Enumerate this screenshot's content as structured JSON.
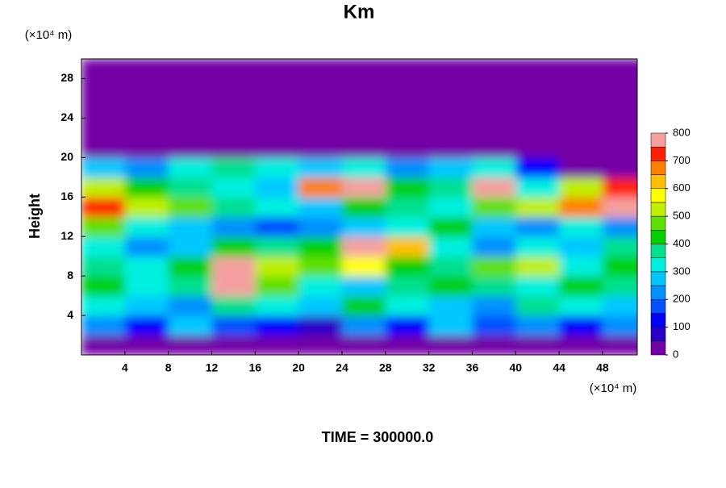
{
  "chart_data": {
    "type": "contour",
    "title": "Km",
    "y_label": "Height",
    "y_unit": "(×10⁴ m)",
    "x_unit": "(×10⁴ m)",
    "annotation": "TIME = 300000.0",
    "xlim": [
      0,
      51.2
    ],
    "ylim": [
      0,
      30
    ],
    "xticks": [
      4,
      8,
      12,
      16,
      20,
      24,
      28,
      32,
      36,
      40,
      44,
      48
    ],
    "yticks": [
      4,
      8,
      12,
      16,
      20,
      24,
      28
    ],
    "x": [
      2,
      6,
      10,
      14,
      18,
      22,
      26,
      30,
      34,
      38,
      42,
      46,
      50
    ],
    "y": [
      1,
      3,
      5,
      7,
      9,
      11,
      13,
      15,
      17,
      19,
      21,
      23,
      25,
      27,
      29
    ],
    "z": [
      [
        0,
        0,
        0,
        0,
        0,
        0,
        0,
        0,
        0,
        0,
        0,
        0,
        0
      ],
      [
        200,
        100,
        250,
        150,
        100,
        50,
        200,
        100,
        250,
        150,
        200,
        100,
        200
      ],
      [
        300,
        250,
        200,
        350,
        300,
        250,
        400,
        300,
        250,
        200,
        350,
        300,
        250
      ],
      [
        400,
        300,
        350,
        800,
        450,
        300,
        250,
        350,
        400,
        350,
        300,
        400,
        350
      ],
      [
        350,
        300,
        400,
        800,
        500,
        450,
        550,
        400,
        350,
        450,
        500,
        300,
        400
      ],
      [
        300,
        200,
        250,
        400,
        350,
        400,
        800,
        600,
        300,
        200,
        300,
        250,
        350
      ],
      [
        450,
        300,
        250,
        200,
        150,
        200,
        250,
        300,
        400,
        250,
        200,
        300,
        200
      ],
      [
        700,
        500,
        450,
        350,
        300,
        250,
        400,
        350,
        300,
        450,
        500,
        650,
        800
      ],
      [
        500,
        400,
        350,
        300,
        250,
        650,
        800,
        400,
        350,
        800,
        300,
        500,
        700
      ],
      [
        250,
        200,
        300,
        350,
        300,
        250,
        300,
        200,
        250,
        300,
        100,
        0,
        0
      ],
      [
        0,
        0,
        0,
        0,
        0,
        0,
        0,
        0,
        0,
        0,
        0,
        0,
        0
      ],
      [
        0,
        0,
        0,
        0,
        0,
        0,
        0,
        0,
        0,
        0,
        0,
        0,
        0
      ],
      [
        0,
        0,
        0,
        0,
        0,
        0,
        0,
        0,
        0,
        0,
        0,
        0,
        0
      ],
      [
        0,
        0,
        0,
        0,
        0,
        0,
        0,
        0,
        0,
        0,
        0,
        0,
        0
      ],
      [
        0,
        0,
        0,
        0,
        0,
        0,
        0,
        0,
        0,
        0,
        0,
        0,
        0
      ]
    ],
    "levels": [
      0,
      50,
      100,
      150,
      200,
      250,
      300,
      350,
      400,
      450,
      500,
      550,
      600,
      650,
      700,
      750,
      800
    ],
    "colors": [
      "#7200a5",
      "#2a00c8",
      "#0000ff",
      "#0050ff",
      "#0090ff",
      "#00c8ff",
      "#00f0e0",
      "#00e090",
      "#00d000",
      "#60e000",
      "#c0f000",
      "#ffff00",
      "#ffc000",
      "#ff8000",
      "#ff2000",
      "#f4a0a0"
    ],
    "colorbar_ticks": [
      0,
      100,
      200,
      300,
      400,
      500,
      600,
      700,
      800
    ]
  }
}
